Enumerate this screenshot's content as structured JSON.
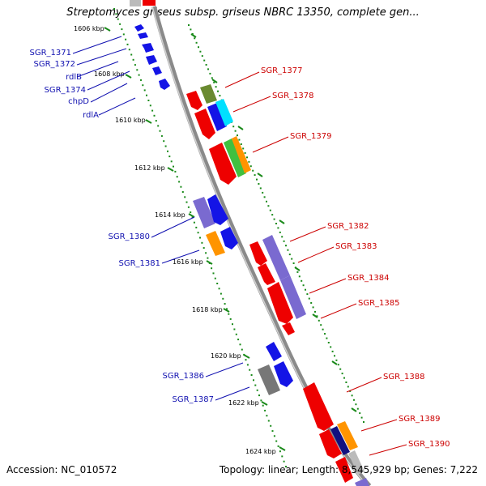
{
  "header": {
    "title": "Streptomyces griseus subsp. griseus NBRC 13350, complete gen..."
  },
  "footer": {
    "accession": "Accession: NC_010572",
    "topology": "Topology: linear; Length: 8,545,929 bp; Genes: 7,222"
  },
  "ticks": [
    {
      "label": "1606 kbp"
    },
    {
      "label": "1608 kbp"
    },
    {
      "label": "1610 kbp"
    },
    {
      "label": "1612 kbp"
    },
    {
      "label": "1614 kbp"
    },
    {
      "label": "1616 kbp"
    },
    {
      "label": "1618 kbp"
    },
    {
      "label": "1620 kbp"
    },
    {
      "label": "1622 kbp"
    },
    {
      "label": "1624 kbp"
    }
  ],
  "genes_left": [
    {
      "name": "SGR_1371"
    },
    {
      "name": "SGR_1372"
    },
    {
      "name": "rdlB"
    },
    {
      "name": "SGR_1374"
    },
    {
      "name": "chpD"
    },
    {
      "name": "rdlA"
    },
    {
      "name": "SGR_1380"
    },
    {
      "name": "SGR_1381"
    },
    {
      "name": "SGR_1386"
    },
    {
      "name": "SGR_1387"
    }
  ],
  "genes_right": [
    {
      "name": "SGR_1377"
    },
    {
      "name": "SGR_1378"
    },
    {
      "name": "SGR_1379"
    },
    {
      "name": "SGR_1382"
    },
    {
      "name": "SGR_1383"
    },
    {
      "name": "SGR_1384"
    },
    {
      "name": "SGR_1385"
    },
    {
      "name": "SGR_1388"
    },
    {
      "name": "SGR_1389"
    },
    {
      "name": "SGR_1390"
    }
  ],
  "colors": {
    "red": "#ee0000",
    "blue": "#1414e6",
    "purple": "#7a6ad0",
    "orange": "#ff9400",
    "green": "#40c040",
    "olive": "#6a8a30",
    "cyan": "#00e0ff",
    "gray": "#777777",
    "navy": "#101080",
    "tick_green": "#1a8a1a"
  }
}
